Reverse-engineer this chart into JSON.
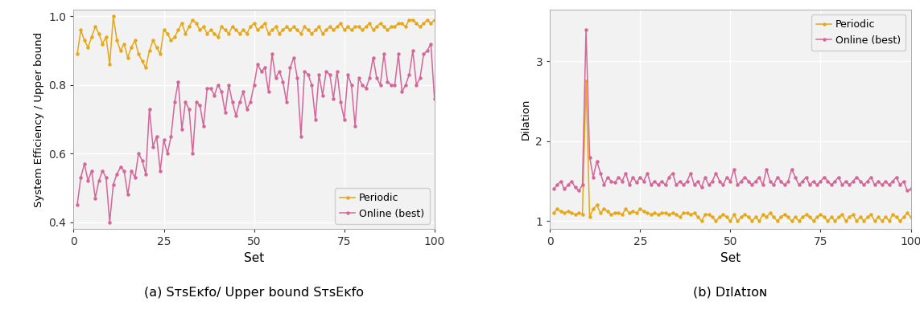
{
  "left_periodic_x": [
    1,
    2,
    3,
    4,
    5,
    6,
    7,
    8,
    9,
    10,
    11,
    12,
    13,
    14,
    15,
    16,
    17,
    18,
    19,
    20,
    21,
    22,
    23,
    24,
    25,
    26,
    27,
    28,
    29,
    30,
    31,
    32,
    33,
    34,
    35,
    36,
    37,
    38,
    39,
    40,
    41,
    42,
    43,
    44,
    45,
    46,
    47,
    48,
    49,
    50,
    51,
    52,
    53,
    54,
    55,
    56,
    57,
    58,
    59,
    60,
    61,
    62,
    63,
    64,
    65,
    66,
    67,
    68,
    69,
    70,
    71,
    72,
    73,
    74,
    75,
    76,
    77,
    78,
    79,
    80,
    81,
    82,
    83,
    84,
    85,
    86,
    87,
    88,
    89,
    90,
    91,
    92,
    93,
    94,
    95,
    96,
    97,
    98,
    99,
    100
  ],
  "left_periodic_y": [
    0.89,
    0.96,
    0.93,
    0.91,
    0.94,
    0.97,
    0.95,
    0.92,
    0.94,
    0.86,
    1.0,
    0.93,
    0.9,
    0.92,
    0.88,
    0.91,
    0.93,
    0.89,
    0.87,
    0.85,
    0.9,
    0.93,
    0.91,
    0.89,
    0.96,
    0.95,
    0.93,
    0.94,
    0.96,
    0.98,
    0.95,
    0.97,
    0.99,
    0.98,
    0.96,
    0.97,
    0.95,
    0.96,
    0.95,
    0.94,
    0.97,
    0.96,
    0.95,
    0.97,
    0.96,
    0.95,
    0.96,
    0.95,
    0.97,
    0.98,
    0.96,
    0.97,
    0.98,
    0.95,
    0.96,
    0.97,
    0.95,
    0.96,
    0.97,
    0.96,
    0.97,
    0.96,
    0.95,
    0.97,
    0.96,
    0.95,
    0.96,
    0.97,
    0.95,
    0.96,
    0.97,
    0.96,
    0.97,
    0.98,
    0.96,
    0.97,
    0.96,
    0.97,
    0.97,
    0.96,
    0.97,
    0.98,
    0.96,
    0.97,
    0.98,
    0.97,
    0.96,
    0.97,
    0.97,
    0.98,
    0.98,
    0.97,
    0.99,
    0.99,
    0.98,
    0.97,
    0.98,
    0.99,
    0.98,
    0.99
  ],
  "left_online_y": [
    0.45,
    0.53,
    0.57,
    0.52,
    0.55,
    0.47,
    0.52,
    0.55,
    0.53,
    0.4,
    0.51,
    0.54,
    0.56,
    0.55,
    0.48,
    0.55,
    0.53,
    0.6,
    0.58,
    0.54,
    0.73,
    0.62,
    0.65,
    0.55,
    0.64,
    0.6,
    0.65,
    0.75,
    0.81,
    0.67,
    0.75,
    0.73,
    0.6,
    0.75,
    0.74,
    0.68,
    0.79,
    0.79,
    0.77,
    0.8,
    0.78,
    0.72,
    0.8,
    0.75,
    0.71,
    0.75,
    0.78,
    0.73,
    0.75,
    0.8,
    0.86,
    0.84,
    0.85,
    0.78,
    0.89,
    0.82,
    0.84,
    0.81,
    0.75,
    0.85,
    0.88,
    0.82,
    0.65,
    0.84,
    0.83,
    0.8,
    0.7,
    0.83,
    0.77,
    0.84,
    0.83,
    0.76,
    0.84,
    0.75,
    0.7,
    0.83,
    0.8,
    0.68,
    0.82,
    0.8,
    0.79,
    0.82,
    0.88,
    0.82,
    0.8,
    0.89,
    0.81,
    0.8,
    0.8,
    0.89,
    0.78,
    0.8,
    0.83,
    0.9,
    0.8,
    0.82,
    0.89,
    0.9,
    0.92,
    0.76
  ],
  "right_periodic_x": [
    1,
    2,
    3,
    4,
    5,
    6,
    7,
    8,
    9,
    10,
    11,
    12,
    13,
    14,
    15,
    16,
    17,
    18,
    19,
    20,
    21,
    22,
    23,
    24,
    25,
    26,
    27,
    28,
    29,
    30,
    31,
    32,
    33,
    34,
    35,
    36,
    37,
    38,
    39,
    40,
    41,
    42,
    43,
    44,
    45,
    46,
    47,
    48,
    49,
    50,
    51,
    52,
    53,
    54,
    55,
    56,
    57,
    58,
    59,
    60,
    61,
    62,
    63,
    64,
    65,
    66,
    67,
    68,
    69,
    70,
    71,
    72,
    73,
    74,
    75,
    76,
    77,
    78,
    79,
    80,
    81,
    82,
    83,
    84,
    85,
    86,
    87,
    88,
    89,
    90,
    91,
    92,
    93,
    94,
    95,
    96,
    97,
    98,
    99,
    100
  ],
  "right_periodic_y": [
    1.1,
    1.15,
    1.12,
    1.1,
    1.12,
    1.1,
    1.08,
    1.1,
    1.08,
    2.75,
    1.05,
    1.15,
    1.2,
    1.1,
    1.15,
    1.12,
    1.08,
    1.1,
    1.1,
    1.08,
    1.15,
    1.1,
    1.12,
    1.1,
    1.15,
    1.12,
    1.1,
    1.08,
    1.1,
    1.08,
    1.1,
    1.1,
    1.08,
    1.1,
    1.08,
    1.05,
    1.1,
    1.1,
    1.08,
    1.1,
    1.05,
    1.0,
    1.08,
    1.08,
    1.05,
    1.0,
    1.05,
    1.08,
    1.05,
    1.0,
    1.08,
    1.0,
    1.05,
    1.08,
    1.05,
    1.0,
    1.05,
    1.0,
    1.08,
    1.05,
    1.1,
    1.05,
    1.0,
    1.05,
    1.08,
    1.05,
    1.0,
    1.05,
    1.0,
    1.05,
    1.08,
    1.05,
    1.0,
    1.05,
    1.08,
    1.05,
    1.0,
    1.05,
    1.0,
    1.05,
    1.08,
    1.0,
    1.05,
    1.08,
    1.0,
    1.05,
    1.0,
    1.05,
    1.08,
    1.0,
    1.05,
    1.0,
    1.05,
    1.0,
    1.08,
    1.05,
    1.0,
    1.05,
    1.1,
    1.05
  ],
  "right_online_y": [
    1.4,
    1.45,
    1.5,
    1.4,
    1.45,
    1.5,
    1.42,
    1.38,
    1.45,
    3.4,
    1.8,
    1.55,
    1.75,
    1.6,
    1.45,
    1.55,
    1.5,
    1.48,
    1.55,
    1.5,
    1.6,
    1.45,
    1.55,
    1.48,
    1.55,
    1.5,
    1.6,
    1.45,
    1.5,
    1.45,
    1.5,
    1.45,
    1.55,
    1.6,
    1.45,
    1.5,
    1.45,
    1.5,
    1.6,
    1.45,
    1.5,
    1.42,
    1.55,
    1.45,
    1.5,
    1.6,
    1.5,
    1.45,
    1.55,
    1.5,
    1.65,
    1.45,
    1.5,
    1.55,
    1.5,
    1.45,
    1.5,
    1.55,
    1.45,
    1.65,
    1.5,
    1.45,
    1.55,
    1.5,
    1.45,
    1.5,
    1.65,
    1.55,
    1.45,
    1.5,
    1.55,
    1.45,
    1.5,
    1.45,
    1.5,
    1.55,
    1.5,
    1.45,
    1.5,
    1.55,
    1.45,
    1.5,
    1.45,
    1.5,
    1.55,
    1.5,
    1.45,
    1.5,
    1.55,
    1.45,
    1.5,
    1.45,
    1.5,
    1.45,
    1.5,
    1.55,
    1.45,
    1.5,
    1.38,
    1.4
  ],
  "periodic_color": "#E6A817",
  "online_color": "#D4679A",
  "bg_color": "#F2F2F2",
  "grid_color": "#FFFFFF",
  "left_ylabel": "System Efficiency / Upper bound",
  "left_ylim": [
    0.38,
    1.02
  ],
  "left_yticks": [
    0.4,
    0.6,
    0.8,
    1.0
  ],
  "right_ylabel": "Dilation",
  "right_ylim": [
    0.9,
    3.65
  ],
  "right_yticks": [
    1,
    2,
    3
  ],
  "xlabel": "Set",
  "xlim": [
    0,
    100
  ],
  "xticks": [
    0,
    25,
    50,
    75,
    100
  ],
  "legend_periodic": "Periodic",
  "legend_online": "Online (best)",
  "line_width": 1.1,
  "marker_size": 2.2,
  "marker": "o"
}
